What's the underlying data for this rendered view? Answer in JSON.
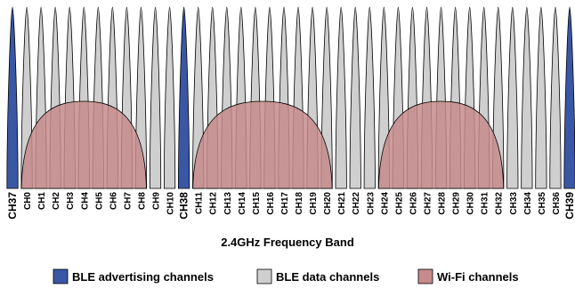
{
  "colors": {
    "advertising": "#3a57a6",
    "data": "#cfcfcf",
    "wifi": "#c68b8b",
    "stroke": "#000000"
  },
  "channels": [
    {
      "label": "CH37",
      "type": "advertising"
    },
    {
      "label": "CH0",
      "type": "data"
    },
    {
      "label": "CH1",
      "type": "data"
    },
    {
      "label": "CH2",
      "type": "data"
    },
    {
      "label": "CH3",
      "type": "data"
    },
    {
      "label": "CH4",
      "type": "data"
    },
    {
      "label": "CH5",
      "type": "data"
    },
    {
      "label": "CH6",
      "type": "data"
    },
    {
      "label": "CH7",
      "type": "data"
    },
    {
      "label": "CH8",
      "type": "data"
    },
    {
      "label": "CH9",
      "type": "data"
    },
    {
      "label": "CH10",
      "type": "data"
    },
    {
      "label": "CH38",
      "type": "advertising"
    },
    {
      "label": "CH11",
      "type": "data"
    },
    {
      "label": "CH12",
      "type": "data"
    },
    {
      "label": "CH13",
      "type": "data"
    },
    {
      "label": "CH14",
      "type": "data"
    },
    {
      "label": "CH15",
      "type": "data"
    },
    {
      "label": "CH16",
      "type": "data"
    },
    {
      "label": "CH17",
      "type": "data"
    },
    {
      "label": "CH18",
      "type": "data"
    },
    {
      "label": "CH19",
      "type": "data"
    },
    {
      "label": "CH20",
      "type": "data"
    },
    {
      "label": "CH21",
      "type": "data"
    },
    {
      "label": "CH22",
      "type": "data"
    },
    {
      "label": "CH23",
      "type": "data"
    },
    {
      "label": "CH24",
      "type": "data"
    },
    {
      "label": "CH25",
      "type": "data"
    },
    {
      "label": "CH26",
      "type": "data"
    },
    {
      "label": "CH27",
      "type": "data"
    },
    {
      "label": "CH28",
      "type": "data"
    },
    {
      "label": "CH29",
      "type": "data"
    },
    {
      "label": "CH30",
      "type": "data"
    },
    {
      "label": "CH31",
      "type": "data"
    },
    {
      "label": "CH32",
      "type": "data"
    },
    {
      "label": "CH33",
      "type": "data"
    },
    {
      "label": "CH34",
      "type": "data"
    },
    {
      "label": "CH35",
      "type": "data"
    },
    {
      "label": "CH36",
      "type": "data"
    },
    {
      "label": "CH39",
      "type": "advertising"
    }
  ],
  "wifi_channels": [
    {
      "from": "CH0",
      "to": "CH8"
    },
    {
      "from": "CH11",
      "to": "CH20"
    },
    {
      "from": "CH24",
      "to": "CH32"
    }
  ],
  "axis_label": "2.4GHz Frequency Band",
  "legend": [
    {
      "label": "BLE advertising channels",
      "type": "advertising"
    },
    {
      "label": "BLE data channels",
      "type": "data"
    },
    {
      "label": "Wi-Fi channels",
      "type": "wifi"
    }
  ]
}
